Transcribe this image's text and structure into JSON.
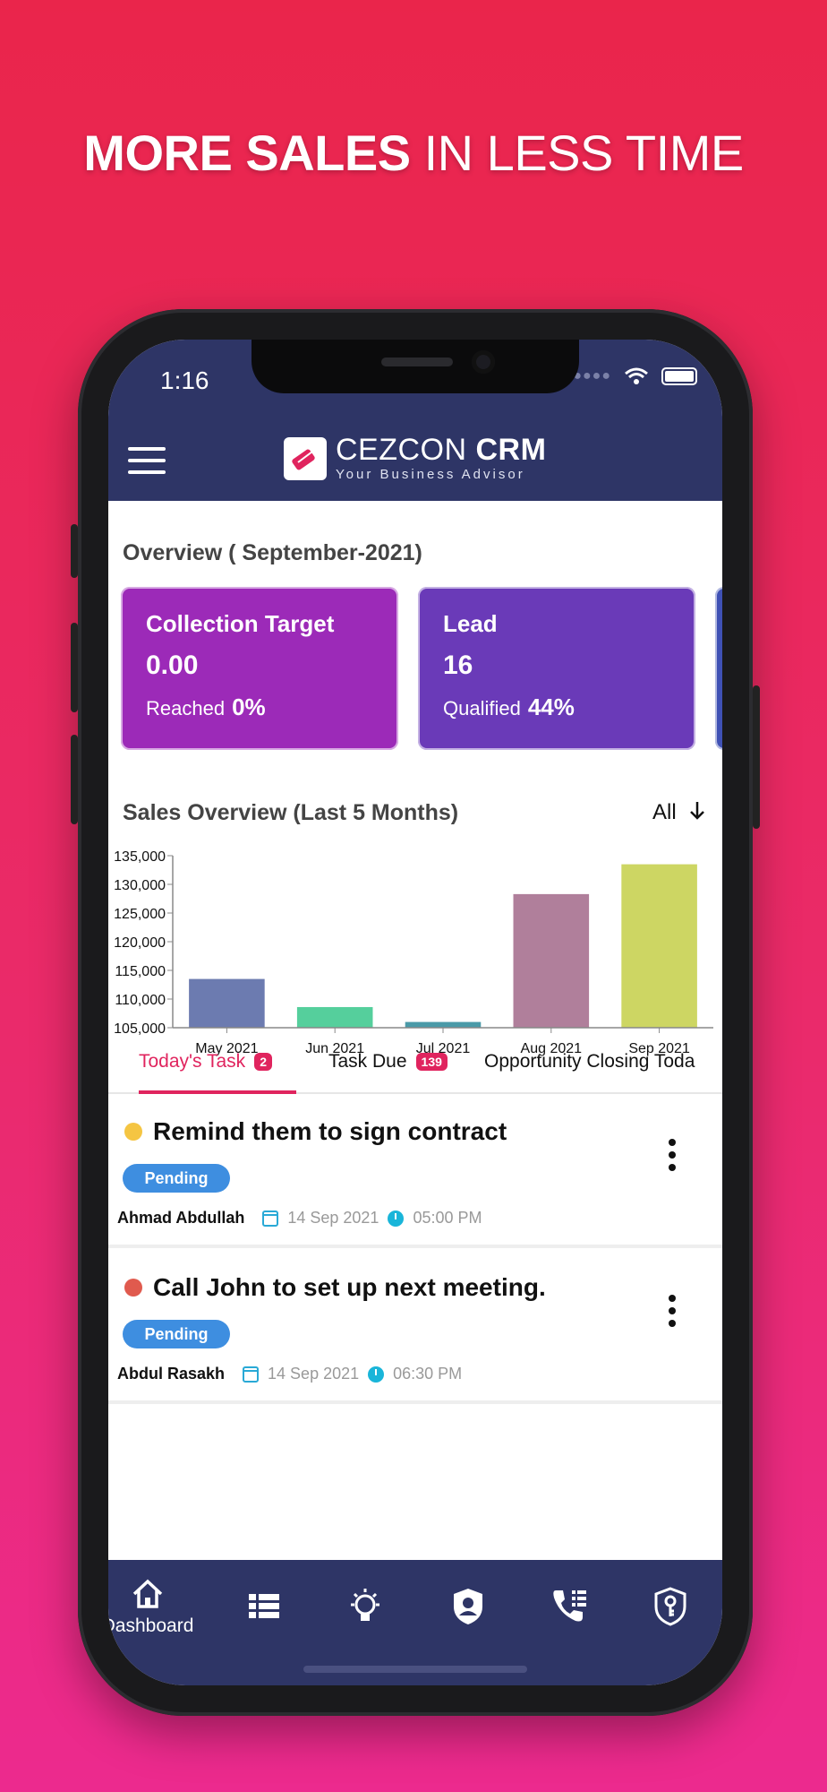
{
  "headline": {
    "bold": "MORE SALES",
    "rest": " IN LESS TIME"
  },
  "status_bar": {
    "time": "1:16"
  },
  "app_bar": {
    "brand_name_light": "CEZCON ",
    "brand_name_bold": "CRM",
    "tagline": "Your Business Advisor"
  },
  "overview": {
    "title": "Overview ( September-2021)",
    "cards": [
      {
        "title": "Collection Target",
        "value": "0.00",
        "sub_label": "Reached",
        "sub_value": "0%",
        "color": "#9c2ab8"
      },
      {
        "title": "Lead",
        "value": "16",
        "sub_label": "Qualified",
        "sub_value": "44%",
        "color": "#6a3ab8"
      }
    ]
  },
  "sales": {
    "title": "Sales Overview (Last 5 Months)",
    "filter": "All"
  },
  "chart_data": {
    "type": "bar",
    "categories": [
      "May 2021",
      "Jun 2021",
      "Jul 2021",
      "Aug 2021",
      "Sep 2021"
    ],
    "values": [
      113500,
      108600,
      106000,
      128300,
      133500
    ],
    "colors": [
      "#6c7bb0",
      "#55cf9c",
      "#4a9aa8",
      "#b07f9b",
      "#cdd663"
    ],
    "ylim": [
      105000,
      135000
    ],
    "yticks": [
      "105,000",
      "110,000",
      "115,000",
      "120,000",
      "125,000",
      "130,000",
      "135,000"
    ],
    "ytick_values": [
      105000,
      110000,
      115000,
      120000,
      125000,
      130000,
      135000
    ]
  },
  "tabs": [
    {
      "label": "Today's Task",
      "badge": "2"
    },
    {
      "label": "Task Due",
      "badge": "139"
    },
    {
      "label": "Opportunity Closing Toda"
    }
  ],
  "tasks": [
    {
      "title": "Remind them to sign contract",
      "status": "Pending",
      "assignee": "Ahmad Abdullah",
      "date": "14 Sep 2021",
      "time": "05:00 PM",
      "dot_color": "#f5c542"
    },
    {
      "title": "Call John to set up next meeting.",
      "status": "Pending",
      "assignee": "Abdul Rasakh",
      "date": "14 Sep 2021",
      "time": "06:30 PM",
      "dot_color": "#e05a4e"
    }
  ],
  "bottom_nav": {
    "dashboard_label": "Dashboard"
  },
  "icons": [
    "hamburger-menu-icon",
    "brand-logo-icon",
    "wifi-icon",
    "battery-icon",
    "home-icon",
    "list-icon",
    "lightbulb-icon",
    "user-shield-icon",
    "phone-list-icon",
    "key-shield-icon",
    "calendar-icon",
    "clock-icon",
    "more-vertical-icon",
    "arrow-down-icon"
  ]
}
